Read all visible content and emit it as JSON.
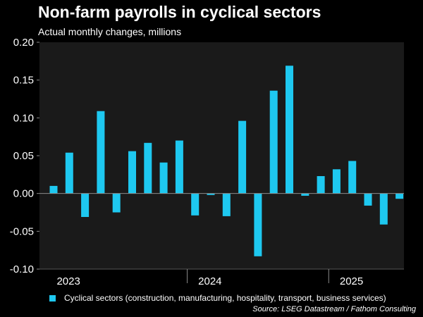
{
  "title": "Non-farm payrolls in cyclical sectors",
  "subtitle": "Actual monthly changes, millions",
  "source": "Source: LSEG Datastream / Fathom Consulting",
  "colors": {
    "background": "#000000",
    "plot_background": "#1a1a1a",
    "bar": "#1ec8f0",
    "zero_line": "#8a8a8a",
    "axis_text": "#ffffff"
  },
  "chart_data": {
    "type": "bar",
    "title": "Non-farm payrolls in cyclical sectors",
    "subtitle": "Actual monthly changes, millions",
    "xlabel": "",
    "ylabel": "",
    "ylim": [
      -0.1,
      0.2
    ],
    "yticks": [
      0.2,
      0.15,
      0.1,
      0.05,
      0.0,
      -0.05,
      -0.1
    ],
    "ytick_labels": [
      "0.20",
      "0.15",
      "0.10",
      "0.05",
      "0.00",
      "-0.05",
      "-0.10"
    ],
    "x_tick_labels": [
      "2023",
      "2024",
      "2025"
    ],
    "grid": false,
    "legend_position": "bottom",
    "series": [
      {
        "name": "Cyclical sectors (construction, manufacturing, hospitality, transport, business services)",
        "color": "#1ec8f0",
        "values": [
          0.01,
          0.054,
          -0.031,
          0.109,
          -0.025,
          0.056,
          0.067,
          0.041,
          0.07,
          -0.029,
          -0.002,
          -0.03,
          0.096,
          -0.083,
          0.136,
          0.169,
          -0.003,
          0.023,
          0.032,
          0.043,
          -0.016,
          -0.041,
          -0.007
        ]
      }
    ],
    "year_start_index": [
      0,
      9,
      18
    ]
  }
}
